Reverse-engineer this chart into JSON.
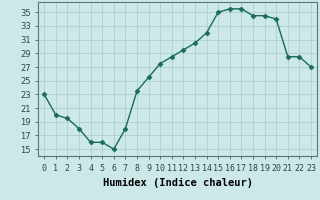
{
  "x": [
    0,
    1,
    2,
    3,
    4,
    5,
    6,
    7,
    8,
    9,
    10,
    11,
    12,
    13,
    14,
    15,
    16,
    17,
    18,
    19,
    20,
    21,
    22,
    23
  ],
  "y": [
    23,
    20,
    19.5,
    18,
    16,
    16,
    15,
    18,
    23.5,
    25.5,
    27.5,
    28.5,
    29.5,
    30.5,
    32,
    35,
    35.5,
    35.5,
    34.5,
    34.5,
    34,
    28.5,
    28.5,
    27
  ],
  "line_color": "#1a6b5a",
  "marker": "D",
  "marker_size": 2.5,
  "bg_color": "#cce8e8",
  "grid_color": "#aacccc",
  "xlabel": "Humidex (Indice chaleur)",
  "ylim": [
    14,
    36.5
  ],
  "xlim": [
    -0.5,
    23.5
  ],
  "yticks": [
    15,
    17,
    19,
    21,
    23,
    25,
    27,
    29,
    31,
    33,
    35
  ],
  "xtick_labels": [
    "0",
    "1",
    "2",
    "3",
    "4",
    "5",
    "6",
    "7",
    "8",
    "9",
    "10",
    "11",
    "12",
    "13",
    "14",
    "15",
    "16",
    "17",
    "18",
    "19",
    "20",
    "21",
    "22",
    "23"
  ],
  "xlabel_fontsize": 7.5,
  "tick_fontsize": 6
}
